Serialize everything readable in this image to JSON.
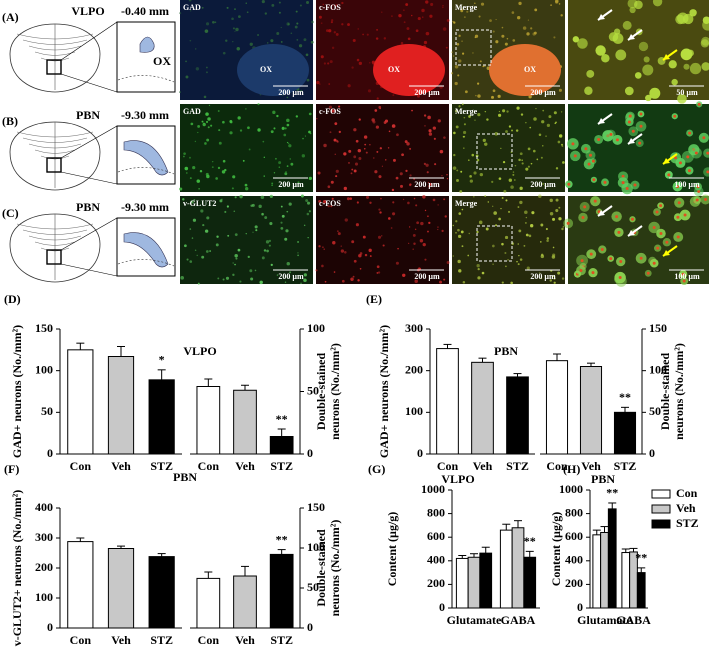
{
  "figure_rows": [
    {
      "label": "(A)",
      "region": "VLPO",
      "coordinate": "-0.40 mm",
      "inset_label": "OX",
      "panels": [
        {
          "label": "GAD",
          "landmark": "OX",
          "scale": "200 µm"
        },
        {
          "label": "c-FOS",
          "landmark": "OX",
          "scale": "200 µm"
        },
        {
          "label": "Merge",
          "landmark": "OX",
          "scale": "200 µm"
        },
        {
          "scale": "50 µm"
        }
      ]
    },
    {
      "label": "(B)",
      "region": "PBN",
      "coordinate": "-9.30 mm",
      "panels": [
        {
          "label": "GAD",
          "scale": "200 µm"
        },
        {
          "label": "c-FOS",
          "scale": "200 µm"
        },
        {
          "label": "Merge",
          "scale": "200 µm"
        },
        {
          "scale": "100 µm"
        }
      ]
    },
    {
      "label": "(C)",
      "region": "PBN",
      "coordinate": "-9.30 mm",
      "panels": [
        {
          "label": "v-GLUT2",
          "scale": "200 µm"
        },
        {
          "label": "c-FOS",
          "scale": "200 µm"
        },
        {
          "label": "Merge",
          "scale": "200 µm"
        },
        {
          "scale": "100 µm"
        }
      ]
    }
  ],
  "chart_data": [
    {
      "type": "paired_bar",
      "panel": "(D)",
      "title": "VLPO",
      "categories": [
        "Con",
        "Veh",
        "STZ"
      ],
      "colors": [
        "#ffffff",
        "#c8c8c8",
        "#000000"
      ],
      "left": {
        "ylabel": "GAD+ neurons (No./mm²)",
        "ylim": [
          0,
          150
        ],
        "yticks": [
          0,
          50,
          100,
          150
        ],
        "values": [
          125,
          117,
          89
        ],
        "errors": [
          8,
          12,
          12
        ],
        "annotations": [
          null,
          null,
          "*"
        ]
      },
      "right": {
        "ylabel": [
          "Double-stained",
          "neurons (No./mm²)"
        ],
        "ylim": [
          0,
          100
        ],
        "yticks": [
          0,
          50,
          100
        ],
        "values": [
          54,
          51,
          14
        ],
        "errors": [
          6,
          4,
          6
        ],
        "annotations": [
          null,
          null,
          "**"
        ]
      }
    },
    {
      "type": "paired_bar",
      "panel": "(E)",
      "title": "PBN",
      "categories": [
        "Con",
        "Veh",
        "STZ"
      ],
      "colors": [
        "#ffffff",
        "#c8c8c8",
        "#000000"
      ],
      "left": {
        "ylabel": "GAD+ neurons (No./mm²)",
        "ylim": [
          0,
          300
        ],
        "yticks": [
          0,
          100,
          200,
          300
        ],
        "values": [
          253,
          220,
          185
        ],
        "errors": [
          10,
          10,
          8
        ],
        "annotations": [
          null,
          null,
          null
        ]
      },
      "right": {
        "ylabel": [
          "Double-stained",
          "neurons (No./mm²)"
        ],
        "ylim": [
          0,
          150
        ],
        "yticks": [
          0,
          50,
          100,
          150
        ],
        "values": [
          112,
          105,
          50
        ],
        "errors": [
          8,
          4,
          6
        ],
        "annotations": [
          null,
          null,
          "**"
        ]
      }
    },
    {
      "type": "paired_bar",
      "panel": "(F)",
      "title": "PBN",
      "categories": [
        "Con",
        "Veh",
        "STZ"
      ],
      "colors": [
        "#ffffff",
        "#c8c8c8",
        "#000000"
      ],
      "left": {
        "ylabel": "v-GLUT2+ neurons (No./mm²)",
        "ylim": [
          0,
          400
        ],
        "yticks": [
          0,
          100,
          200,
          300,
          400
        ],
        "values": [
          288,
          265,
          238
        ],
        "errors": [
          12,
          8,
          10
        ],
        "annotations": [
          null,
          null,
          null
        ]
      },
      "right": {
        "ylabel": [
          "Double-stained",
          "neurons (No./mm²)"
        ],
        "ylim": [
          0,
          150
        ],
        "yticks": [
          0,
          50,
          100,
          150
        ],
        "values": [
          62,
          65,
          92
        ],
        "errors": [
          8,
          12,
          6
        ],
        "annotations": [
          null,
          null,
          "**"
        ]
      }
    },
    {
      "type": "grouped_bar",
      "panel": "(G)",
      "title": "VLPO",
      "ylabel": "Content (µg/g)",
      "categories": [
        "Glutamate",
        "GABA"
      ],
      "ylim": [
        0,
        1000
      ],
      "yticks": [
        0,
        200,
        400,
        600,
        800,
        1000
      ],
      "legend": false,
      "series": [
        {
          "name": "Con",
          "color": "#ffffff",
          "values": [
            420,
            660
          ],
          "errors": [
            25,
            50
          ],
          "annotations": [
            null,
            null
          ]
        },
        {
          "name": "Veh",
          "color": "#c8c8c8",
          "values": [
            430,
            680
          ],
          "errors": [
            30,
            60
          ],
          "annotations": [
            null,
            null
          ]
        },
        {
          "name": "STZ",
          "color": "#000000",
          "values": [
            465,
            430
          ],
          "errors": [
            50,
            50
          ],
          "annotations": [
            null,
            "**"
          ]
        }
      ]
    },
    {
      "type": "grouped_bar",
      "panel": "(H)",
      "title": "PBN",
      "ylabel": "Content (µg/g)",
      "categories": [
        "Glutamate",
        "GABA"
      ],
      "ylim": [
        0,
        1000
      ],
      "yticks": [
        0,
        200,
        400,
        600,
        800,
        1000
      ],
      "legend": true,
      "series": [
        {
          "name": "Con",
          "color": "#ffffff",
          "values": [
            620,
            470
          ],
          "errors": [
            40,
            30
          ],
          "annotations": [
            null,
            null
          ]
        },
        {
          "name": "Veh",
          "color": "#c8c8c8",
          "values": [
            640,
            475
          ],
          "errors": [
            50,
            30
          ],
          "annotations": [
            null,
            null
          ]
        },
        {
          "name": "STZ",
          "color": "#000000",
          "values": [
            840,
            300
          ],
          "errors": [
            50,
            40
          ],
          "annotations": [
            "**",
            "**"
          ]
        }
      ]
    }
  ]
}
